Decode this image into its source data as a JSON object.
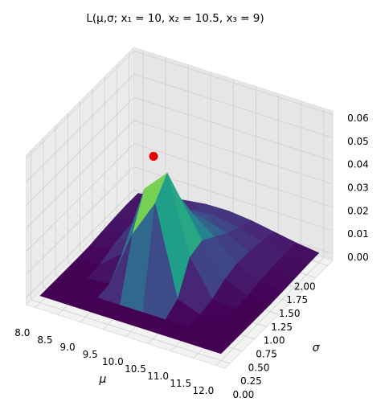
{
  "chart_data": {
    "type": "surface3d",
    "title": "L(μ,σ; x₁ = 10, x₂ = 10.5, x₃ = 9)",
    "xlabel": "μ",
    "ylabel": "σ",
    "x": [
      8,
      8.5,
      9,
      9.5,
      10,
      10.5,
      11,
      11.5,
      12
    ],
    "y": [
      0,
      0.25,
      0.5,
      0.75,
      1,
      1.25,
      1.5,
      1.75,
      2
    ],
    "z": [
      [
        0,
        0,
        0,
        0,
        0,
        0,
        0,
        0,
        0
      ],
      [
        0,
        0,
        0,
        0,
        0,
        0,
        0,
        0,
        0
      ],
      [
        0,
        0,
        0.0008,
        0.0253,
        0.0417,
        0.0034,
        0,
        0,
        0
      ],
      [
        0,
        0.0005,
        0.0084,
        0.0397,
        0.0495,
        0.0163,
        0.0014,
        0,
        0
      ],
      [
        0.0002,
        0.0025,
        0.0125,
        0.03,
        0.034,
        0.0182,
        0.0046,
        0.0005,
        0
      ],
      [
        0.0009,
        0.0041,
        0.0115,
        0.0201,
        0.0218,
        0.0146,
        0.0061,
        0.0016,
        0.0002
      ],
      [
        0.0015,
        0.0044,
        0.0091,
        0.0135,
        0.0142,
        0.0108,
        0.0059,
        0.0023,
        0.0006
      ],
      [
        0.0019,
        0.0041,
        0.007,
        0.0093,
        0.0097,
        0.0079,
        0.005,
        0.0025,
        0.001
      ],
      [
        0.0019,
        0.0035,
        0.0053,
        0.0066,
        0.0068,
        0.0058,
        0.0041,
        0.0024,
        0.0012
      ]
    ],
    "colormap": "viridis",
    "peak": {
      "x": 9.833,
      "y": 0.624,
      "z": 0.0584,
      "color": "#e00000"
    },
    "xlim": [
      7.8,
      12.2
    ],
    "ylim": [
      -0.1,
      2.1
    ],
    "zlim": [
      -0.003,
      0.0615
    ],
    "xticks": [
      {
        "value": 8,
        "label": "8.0"
      },
      8.5,
      {
        "value": 9,
        "label": "9.0"
      },
      9.5,
      {
        "value": 10,
        "label": "10.0"
      },
      10.5,
      {
        "value": 11,
        "label": "11.0"
      },
      11.5,
      {
        "value": 12,
        "label": "12.0"
      }
    ],
    "yticks": [
      {
        "value": 0,
        "label": "0.00"
      },
      0.25,
      {
        "value": 0.5,
        "label": "0.50"
      },
      0.75,
      {
        "value": 1,
        "label": "1.00"
      },
      1.25,
      {
        "value": 1.5,
        "label": "1.50"
      },
      1.75,
      {
        "value": 2,
        "label": "2.00"
      }
    ],
    "zticks": [
      {
        "value": 0,
        "label": "0.00"
      },
      0.01,
      0.02,
      0.03,
      0.04,
      0.05,
      0.06
    ],
    "grid": true
  }
}
